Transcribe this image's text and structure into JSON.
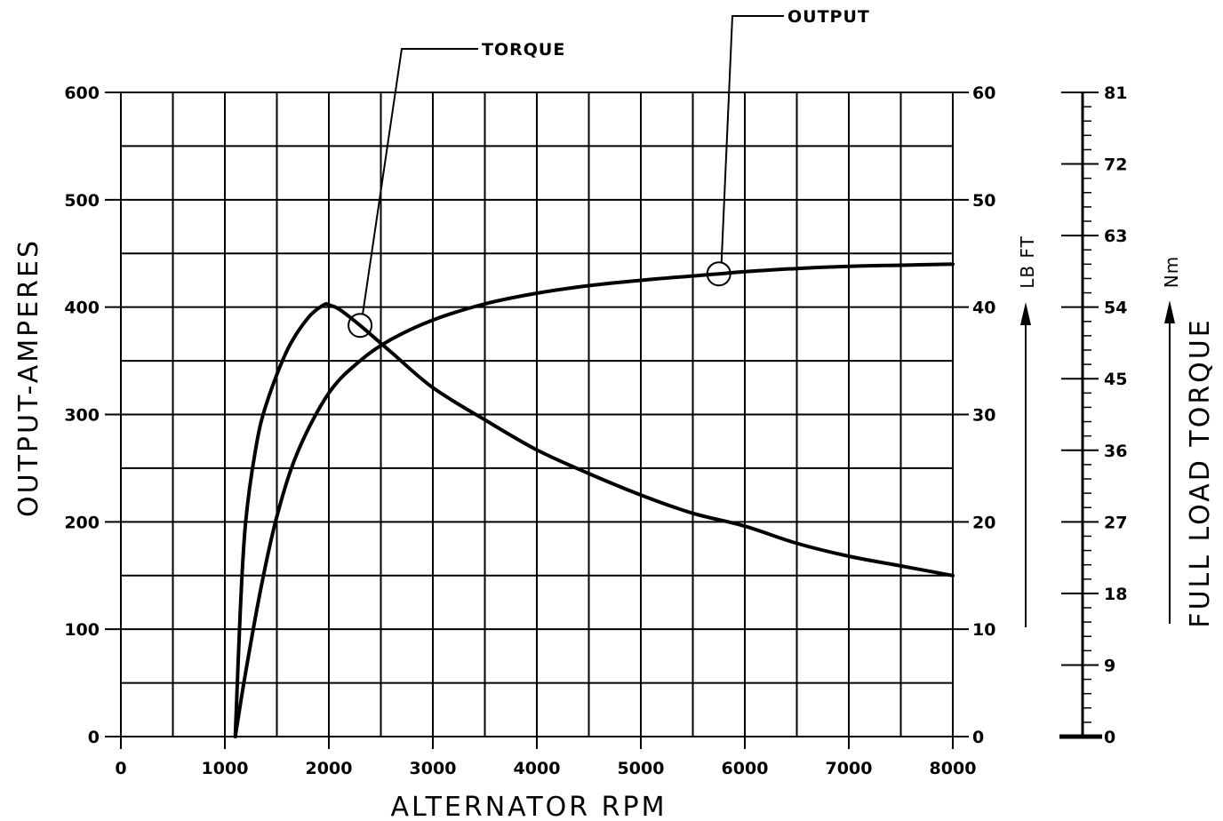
{
  "chart_data": {
    "type": "line",
    "title": "",
    "xlabel": "ALTERNATOR RPM",
    "ylabel": "OUTPUT-AMPERES",
    "y2label": "LB FT",
    "y3label": "FULL LOAD TORQUE",
    "y3unit": "Nm",
    "xlim": [
      0,
      8000
    ],
    "ylim": [
      0,
      600
    ],
    "y2lim": [
      0,
      60
    ],
    "y3lim": [
      0,
      81
    ],
    "x_ticks": [
      "0",
      "1000",
      "2000",
      "3000",
      "4000",
      "5000",
      "6000",
      "7000",
      "8000"
    ],
    "y_ticks": [
      "0",
      "100",
      "200",
      "300",
      "400",
      "500",
      "600"
    ],
    "y2_ticks": [
      "0",
      "10",
      "20",
      "30",
      "40",
      "50",
      "60"
    ],
    "y3_ticks": [
      "0",
      "9",
      "18",
      "27",
      "36",
      "45",
      "54",
      "63",
      "72",
      "81"
    ],
    "grid": true,
    "series": [
      {
        "name": "OUTPUT",
        "axis": "y",
        "x": [
          1100,
          1200,
          1350,
          1500,
          1700,
          2000,
          2300,
          2600,
          3000,
          3500,
          4000,
          4500,
          5000,
          5500,
          5750,
          6000,
          6500,
          7000,
          7500,
          8000
        ],
        "y": [
          0,
          60,
          140,
          205,
          265,
          320,
          350,
          370,
          388,
          403,
          413,
          420,
          425,
          429,
          431,
          433,
          436,
          438,
          439,
          440
        ]
      },
      {
        "name": "TORQUE",
        "axis": "y2",
        "x": [
          1100,
          1150,
          1200,
          1300,
          1400,
          1600,
          1800,
          1950,
          2000,
          2100,
          2300,
          2600,
          3000,
          3500,
          4000,
          4500,
          5000,
          5500,
          6000,
          6500,
          7000,
          7500,
          8000
        ],
        "y": [
          0,
          12,
          20,
          27,
          31,
          36,
          39,
          40.2,
          40.2,
          39.8,
          38.3,
          35.8,
          32.5,
          29.5,
          26.7,
          24.5,
          22.5,
          20.8,
          19.6,
          18.0,
          16.8,
          15.9,
          15.0
        ]
      }
    ],
    "annotations": [
      {
        "text": "TORQUE",
        "series": "TORQUE",
        "x": 2300
      },
      {
        "text": "OUTPUT",
        "series": "OUTPUT",
        "x": 5750
      }
    ]
  }
}
